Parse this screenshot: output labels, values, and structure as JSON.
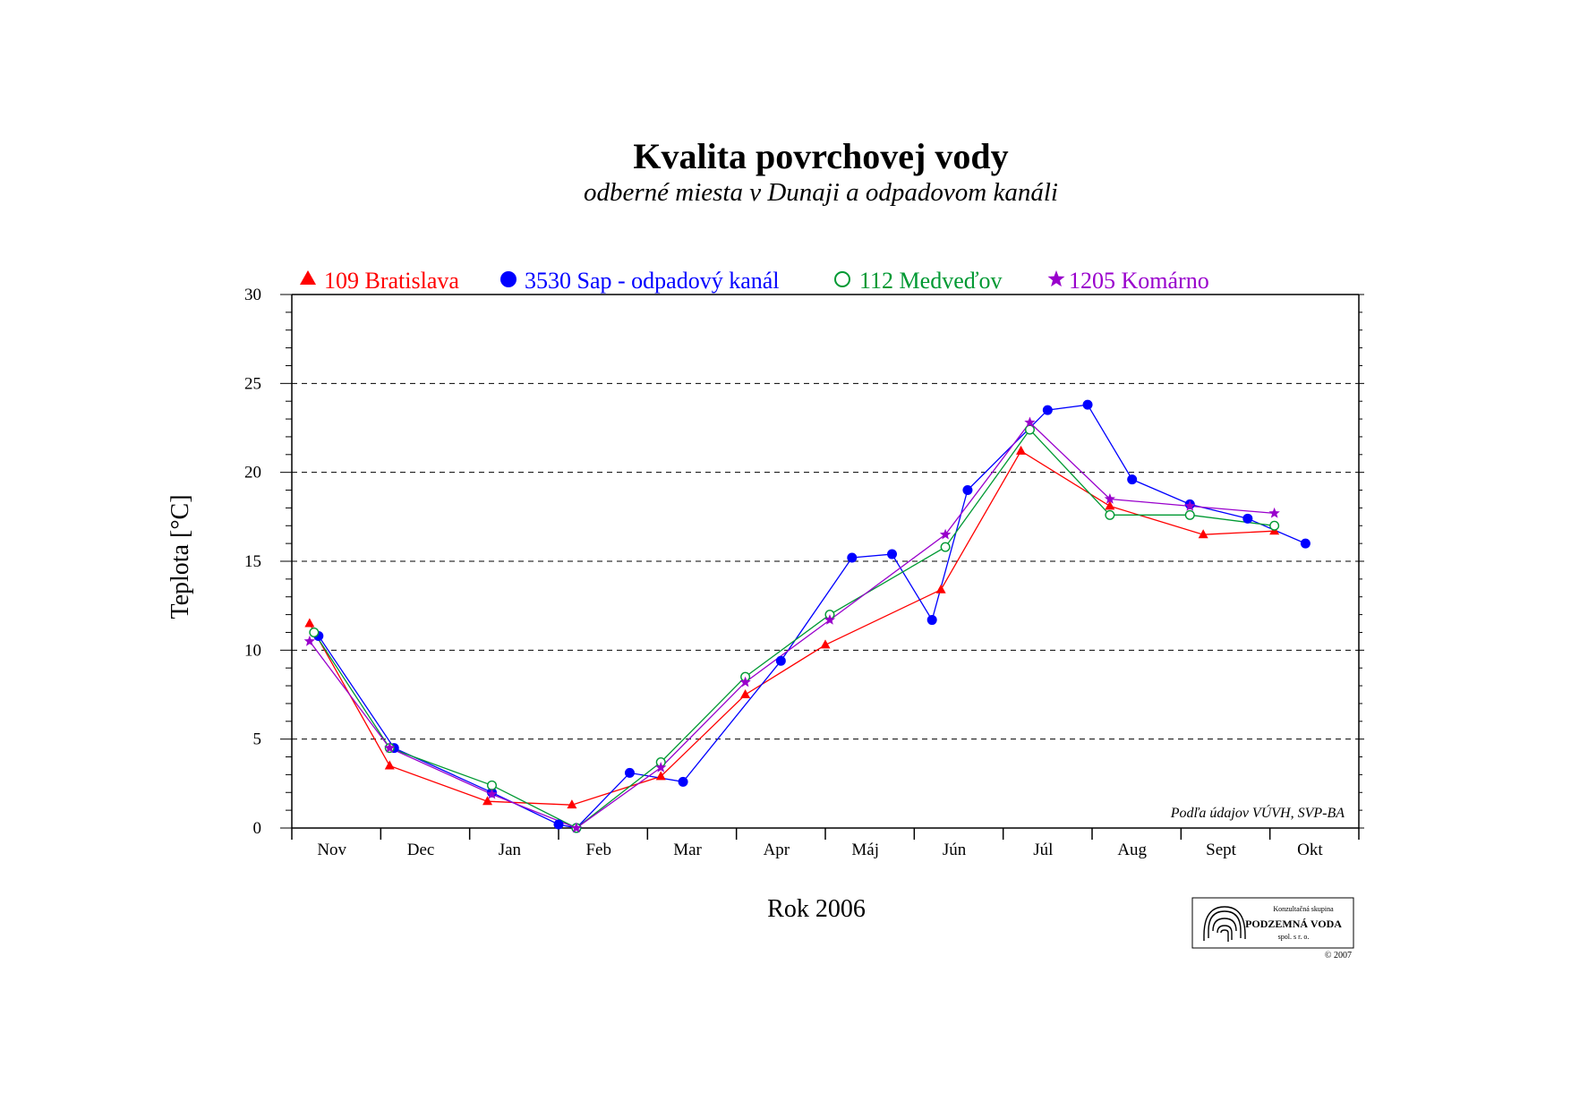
{
  "chart_data": {
    "type": "line",
    "title": "Kvalita povrchovej vody",
    "subtitle": "odberné miesta v Dunaji a odpadovom kanáli",
    "xlabel": "Rok 2006",
    "ylabel": "Teplota [°C]",
    "ylim": [
      0,
      30
    ],
    "yticks": [
      0,
      5,
      10,
      15,
      20,
      25,
      30
    ],
    "categories": [
      "Nov",
      "Dec",
      "Jan",
      "Feb",
      "Mar",
      "Apr",
      "Máj",
      "Jún",
      "Júl",
      "Aug",
      "Sept",
      "Okt"
    ],
    "grid": "horizontal dashed at major ticks",
    "legend_position": "top",
    "source_note": "Podľa údajov VÚVH, SVP-BA",
    "series": [
      {
        "name": "109 Bratislava",
        "color": "#ff0000",
        "marker": "filled-triangle",
        "points": [
          [
            0.2,
            11.5
          ],
          [
            1.1,
            3.5
          ],
          [
            2.2,
            1.5
          ],
          [
            3.15,
            1.3
          ],
          [
            4.15,
            2.9
          ],
          [
            5.1,
            7.5
          ],
          [
            6.0,
            10.3
          ],
          [
            7.3,
            13.4
          ],
          [
            8.2,
            21.2
          ],
          [
            9.2,
            18.1
          ],
          [
            10.25,
            16.5
          ],
          [
            11.05,
            16.7
          ]
        ]
      },
      {
        "name": "3530 Sap - odpadový kanál",
        "color": "#0000ff",
        "marker": "filled-circle",
        "points": [
          [
            0.3,
            10.8
          ],
          [
            1.15,
            4.5
          ],
          [
            2.25,
            2.0
          ],
          [
            3.0,
            0.2
          ],
          [
            3.2,
            0.0
          ],
          [
            3.8,
            3.1
          ],
          [
            4.4,
            2.6
          ],
          [
            5.5,
            9.4
          ],
          [
            6.3,
            15.2
          ],
          [
            6.75,
            15.4
          ],
          [
            7.2,
            11.7
          ],
          [
            7.6,
            19.0
          ],
          [
            8.5,
            23.5
          ],
          [
            8.95,
            23.8
          ],
          [
            9.45,
            19.6
          ],
          [
            10.1,
            18.2
          ],
          [
            10.75,
            17.4
          ],
          [
            11.4,
            16.0
          ]
        ]
      },
      {
        "name": "112 Medveďov",
        "color": "#009933",
        "marker": "hollow-circle",
        "points": [
          [
            0.25,
            11.0
          ],
          [
            1.1,
            4.5
          ],
          [
            2.25,
            2.4
          ],
          [
            3.2,
            0.0
          ],
          [
            4.15,
            3.7
          ],
          [
            5.1,
            8.5
          ],
          [
            6.05,
            12.0
          ],
          [
            7.35,
            15.8
          ],
          [
            8.3,
            22.4
          ],
          [
            9.2,
            17.6
          ],
          [
            10.1,
            17.6
          ],
          [
            11.05,
            17.0
          ]
        ]
      },
      {
        "name": "1205 Komárno",
        "color": "#9900cc",
        "marker": "star",
        "points": [
          [
            0.2,
            10.5
          ],
          [
            1.1,
            4.5
          ],
          [
            2.25,
            1.9
          ],
          [
            3.2,
            0.0
          ],
          [
            4.15,
            3.4
          ],
          [
            5.1,
            8.2
          ],
          [
            6.05,
            11.7
          ],
          [
            7.35,
            16.5
          ],
          [
            8.3,
            22.8
          ],
          [
            9.2,
            18.5
          ],
          [
            10.1,
            18.1
          ],
          [
            11.05,
            17.7
          ]
        ]
      }
    ]
  },
  "logo": {
    "top_text": "Konzultačná skupina",
    "name": "PODZEMNÁ VODA",
    "sub_text": "spol. s r. o.",
    "copyright": "© 2007"
  }
}
